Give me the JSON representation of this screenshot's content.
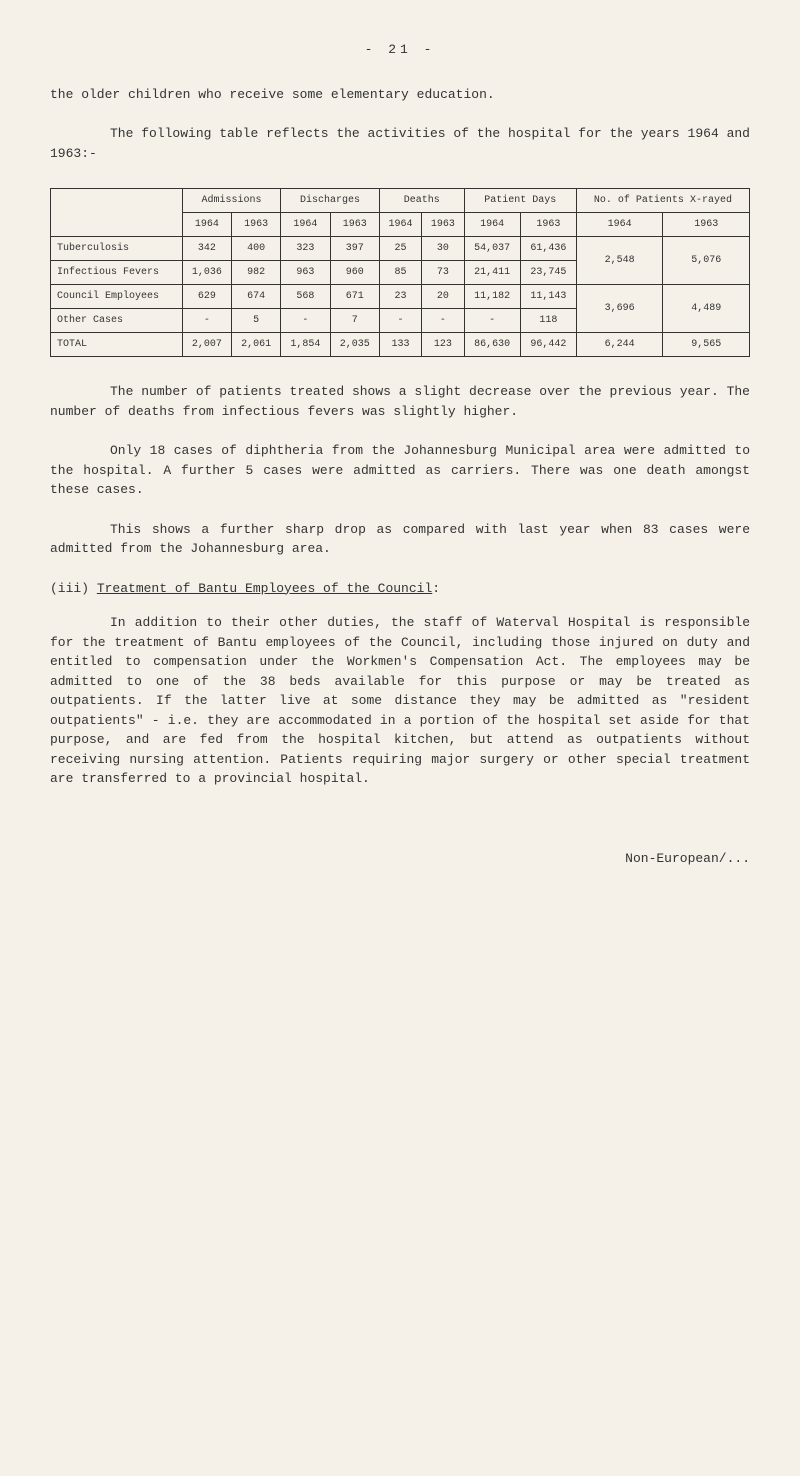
{
  "pageNumber": "-  21  -",
  "intro1": "the older children who receive some elementary education.",
  "intro2": "The following table reflects the activities of the hospital for the years 1964 and 1963:-",
  "table": {
    "headers": {
      "col1": "",
      "admissions": "Admissions",
      "discharges": "Discharges",
      "deaths": "Deaths",
      "patientDays": "Patient Days",
      "xrayed": "No. of Patients X-rayed",
      "y1964": "1964",
      "y1963": "1963"
    },
    "rows": [
      {
        "label": "Tuberculosis",
        "adm1964": "342",
        "adm1963": "400",
        "dis1964": "323",
        "dis1963": "397",
        "dea1964": "25",
        "dea1963": "30",
        "pd1964": "54,037",
        "pd1963": "61,436",
        "xr1964": "2,548",
        "xr1963": "5,076"
      },
      {
        "label": "Infectious Fevers",
        "adm1964": "1,036",
        "adm1963": "982",
        "dis1964": "963",
        "dis1963": "960",
        "dea1964": "85",
        "dea1963": "73",
        "pd1964": "21,411",
        "pd1963": "23,745"
      },
      {
        "label": "Council Employees",
        "adm1964": "629",
        "adm1963": "674",
        "dis1964": "568",
        "dis1963": "671",
        "dea1964": "23",
        "dea1963": "20",
        "pd1964": "11,182",
        "pd1963": "11,143",
        "xr1964": "3,696",
        "xr1963": "4,489"
      },
      {
        "label": "Other Cases",
        "adm1964": "-",
        "adm1963": "5",
        "dis1964": "-",
        "dis1963": "7",
        "dea1964": "-",
        "dea1963": "-",
        "pd1964": "-",
        "pd1963": "118"
      }
    ],
    "total": {
      "label": "TOTAL",
      "adm1964": "2,007",
      "adm1963": "2,061",
      "dis1964": "1,854",
      "dis1963": "2,035",
      "dea1964": "133",
      "dea1963": "123",
      "pd1964": "86,630",
      "pd1963": "96,442",
      "xr1964": "6,244",
      "xr1963": "9,565"
    }
  },
  "para1": "The number of patients treated shows a slight decrease over the previous year.  The number of deaths from infectious fevers was slightly higher.",
  "para2": "Only 18 cases of diphtheria from the Johannesburg Municipal area were admitted to the hospital.  A further 5 cases were admitted as carriers.  There was one death amongst these cases.",
  "para3": "This shows a further sharp drop as compared with last year when 83 cases were admitted from the Johannesburg area.",
  "sectionNum": "(iii) ",
  "sectionTitle": "Treatment of Bantu Employees of the Council",
  "sectionColon": ":",
  "para4": "In addition to their other duties, the staff of Waterval Hospital is responsible for the treatment of Bantu employees of the Council, including those injured on duty and entitled to compensation under the Workmen's Compensation Act.  The employees may be admitted to one of the 38 beds available for this purpose or may be treated as outpatients.  If the latter live at some distance they may be admitted as \"resident outpatients\" - i.e. they are accommodated in a portion of the hospital set aside for that purpose, and are fed from the hospital kitchen, but attend as outpatients without receiving nursing attention.  Patients requiring major surgery or other special treatment are transferred to a provincial hospital.",
  "footer": "Non-European/..."
}
